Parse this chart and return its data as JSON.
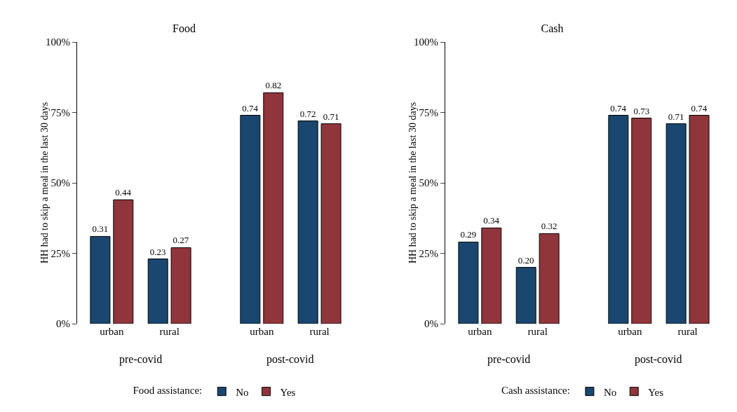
{
  "chart_data": [
    {
      "type": "bar",
      "title": "Food",
      "ylabel": "HH had to skip a meal in the last 30 days",
      "categories": [
        "urban",
        "rural",
        "urban",
        "rural"
      ],
      "annotations": [
        "pre-covid",
        "post-covid"
      ],
      "legend": "bottom",
      "legend_title": "Food assistance:",
      "ylim": [
        0,
        1
      ],
      "yticks": [
        {
          "value": 0,
          "label": "0%"
        },
        {
          "value": 0.25,
          "label": "25%"
        },
        {
          "value": 0.5,
          "label": "50%"
        },
        {
          "value": 0.75,
          "label": "75%"
        },
        {
          "value": 1,
          "label": "100%"
        }
      ],
      "series": [
        {
          "name": "No",
          "color": "#1a476f",
          "values": [
            0.31,
            0.23,
            0.74,
            0.72
          ],
          "value_labels": [
            "0.31",
            "0.23",
            "0.74",
            "0.72"
          ]
        },
        {
          "name": "Yes",
          "color": "#90353b",
          "values": [
            0.44,
            0.27,
            0.82,
            0.71
          ],
          "value_labels": [
            "0.44",
            "0.27",
            "0.82",
            "0.71"
          ]
        }
      ]
    },
    {
      "type": "bar",
      "title": "Cash",
      "ylabel": "HH had to skip a meal in the last 30 days",
      "categories": [
        "urban",
        "rural",
        "urban",
        "rural"
      ],
      "annotations": [
        "pre-covid",
        "post-covid"
      ],
      "legend": "bottom",
      "legend_title": "Cash assistance:",
      "ylim": [
        0,
        1
      ],
      "yticks": [
        {
          "value": 0,
          "label": "0%"
        },
        {
          "value": 0.25,
          "label": "25%"
        },
        {
          "value": 0.5,
          "label": "50%"
        },
        {
          "value": 0.75,
          "label": "75%"
        },
        {
          "value": 1,
          "label": "100%"
        }
      ],
      "series": [
        {
          "name": "No",
          "color": "#1a476f",
          "values": [
            0.29,
            0.2,
            0.74,
            0.71
          ],
          "value_labels": [
            "0.29",
            "0.20",
            "0.74",
            "0.71"
          ]
        },
        {
          "name": "Yes",
          "color": "#90353b",
          "values": [
            0.34,
            0.32,
            0.73,
            0.74
          ],
          "value_labels": [
            "0.34",
            "0.32",
            "0.73",
            "0.74"
          ]
        }
      ]
    }
  ]
}
